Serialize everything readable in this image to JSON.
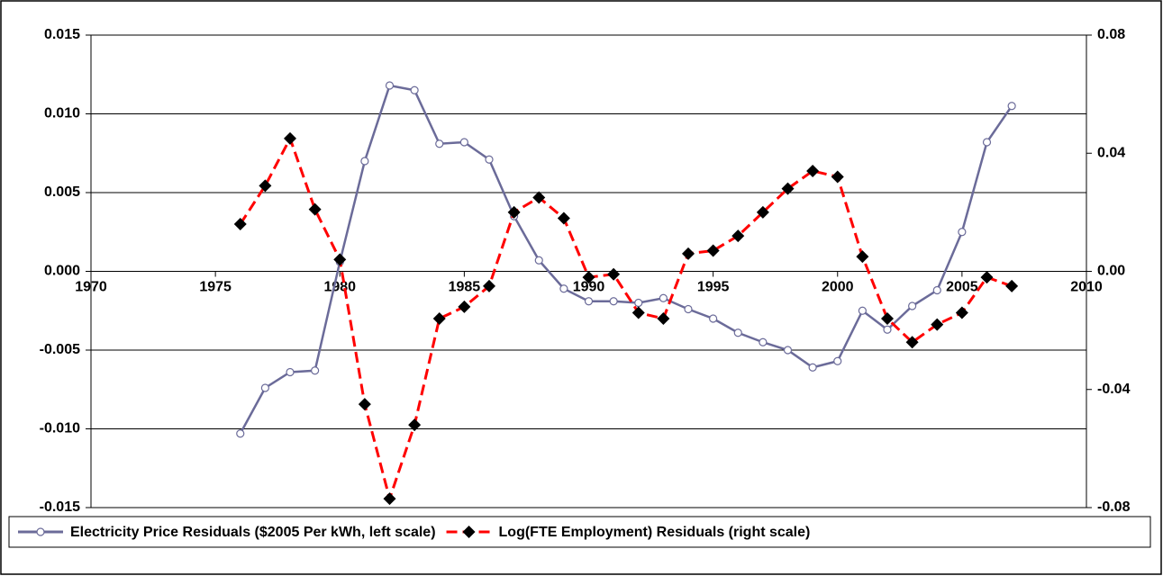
{
  "chart_data": {
    "type": "line",
    "x": [
      1976,
      1977,
      1978,
      1979,
      1980,
      1981,
      1982,
      1983,
      1984,
      1985,
      1986,
      1987,
      1988,
      1989,
      1990,
      1991,
      1992,
      1993,
      1994,
      1995,
      1996,
      1997,
      1998,
      1999,
      2000,
      2001,
      2002,
      2003,
      2004,
      2005,
      2006,
      2007
    ],
    "xlim": [
      1970,
      2010
    ],
    "xticks": [
      1970,
      1975,
      1980,
      1985,
      1990,
      1995,
      2000,
      2005,
      2010
    ],
    "ylim": [
      -0.015,
      0.015
    ],
    "yticks": [
      -0.015,
      {
        "value": -0.01,
        "label": "-0.010"
      },
      -0.005,
      {
        "value": 0,
        "label": "0.000"
      },
      0.005,
      {
        "value": 0.01,
        "label": "0.010"
      },
      0.015
    ],
    "y2lim": [
      -0.08,
      0.08
    ],
    "y2ticks": [
      -0.08,
      -0.04,
      {
        "value": 0,
        "label": "0.00"
      },
      0.04,
      0.08
    ],
    "grid": true,
    "legend": "bottom",
    "series": [
      {
        "name": "Electricity Price Residuals ($2005 Per kWh, left scale)",
        "color": "#6b6b99",
        "axis": "y",
        "values": [
          -0.0103,
          -0.0074,
          -0.0064,
          -0.0063,
          0.0006,
          0.007,
          0.0118,
          0.0115,
          0.0081,
          0.0082,
          0.0071,
          0.0035,
          0.0007,
          -0.0011,
          -0.0019,
          -0.0019,
          -0.002,
          -0.0017,
          -0.0024,
          -0.003,
          -0.0039,
          -0.0045,
          -0.005,
          -0.0061,
          -0.0057,
          -0.0025,
          -0.0037,
          -0.0022,
          -0.0012,
          0.0025,
          0.0082,
          0.0105
        ]
      },
      {
        "name": "Log(FTE Employment) Residuals (right scale)",
        "color": "#ff0000",
        "axis": "y2",
        "values": [
          0.016,
          0.029,
          0.045,
          0.021,
          0.004,
          -0.045,
          -0.077,
          -0.052,
          -0.016,
          -0.012,
          -0.005,
          0.02,
          0.025,
          0.018,
          -0.002,
          -0.001,
          -0.014,
          -0.016,
          0.006,
          0.007,
          0.012,
          0.02,
          0.028,
          0.034,
          0.032,
          0.005,
          -0.016,
          -0.024,
          -0.018,
          -0.014,
          -0.002,
          -0.005
        ]
      }
    ]
  }
}
